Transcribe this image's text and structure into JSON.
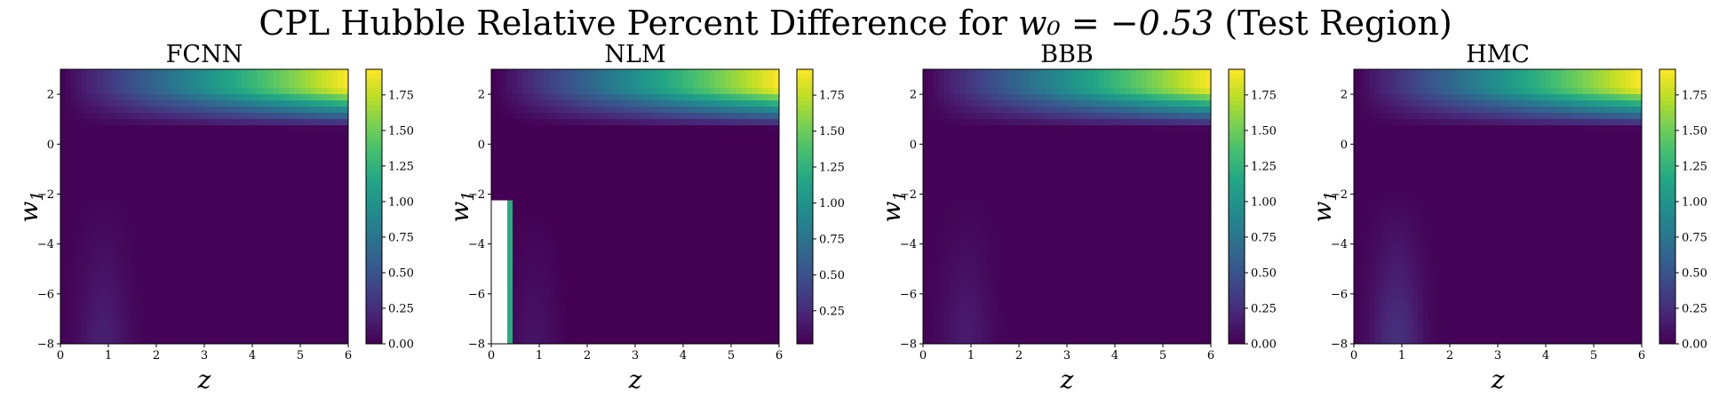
{
  "figure": {
    "title_prefix": "CPL Hubble Relative Percent Difference for ",
    "title_math": "w₀ = −0.53",
    "title_suffix": " (Test Region)"
  },
  "chart_data": [
    {
      "type": "heatmap",
      "title": "FCNN",
      "xlabel": "z",
      "ylabel": "w1",
      "xlim": [
        0,
        6
      ],
      "ylim": [
        -8,
        3
      ],
      "xticks": [
        "0",
        "1",
        "2",
        "3",
        "4",
        "5",
        "6"
      ],
      "yticks": [
        "2",
        "0",
        "−2",
        "−4",
        "−6",
        "−8"
      ],
      "colorbar": {
        "range": [
          0,
          1.93
        ],
        "ticks": [
          "0.00",
          "0.25",
          "0.50",
          "0.75",
          "1.00",
          "1.25",
          "1.50",
          "1.75"
        ]
      },
      "colormap": "viridis",
      "features": {
        "max_value_region": "high z, w1 > 1",
        "low_z_band_peak": 0.17,
        "white_missing_region": false
      }
    },
    {
      "type": "heatmap",
      "title": "NLM",
      "xlabel": "z",
      "ylabel": "w1",
      "xlim": [
        0,
        6
      ],
      "ylim": [
        -8,
        3
      ],
      "xticks": [
        "0",
        "1",
        "2",
        "3",
        "4",
        "5",
        "6"
      ],
      "yticks": [
        "2",
        "0",
        "−2",
        "−4",
        "−6",
        "−8"
      ],
      "colorbar": {
        "range": [
          0.02,
          1.93
        ],
        "ticks": [
          "0.25",
          "0.50",
          "0.75",
          "1.00",
          "1.25",
          "1.50",
          "1.75"
        ]
      },
      "colormap": "viridis",
      "features": {
        "max_value_region": "high z, w1 > 1",
        "low_z_band_peak": 0.12,
        "white_missing_region": true
      }
    },
    {
      "type": "heatmap",
      "title": "BBB",
      "xlabel": "z",
      "ylabel": "w1",
      "xlim": [
        0,
        6
      ],
      "ylim": [
        -8,
        3
      ],
      "xticks": [
        "0",
        "1",
        "2",
        "3",
        "4",
        "5",
        "6"
      ],
      "yticks": [
        "2",
        "0",
        "−2",
        "−4",
        "−6",
        "−8"
      ],
      "colorbar": {
        "range": [
          0,
          1.93
        ],
        "ticks": [
          "0.00",
          "0.25",
          "0.50",
          "0.75",
          "1.00",
          "1.25",
          "1.50",
          "1.75"
        ]
      },
      "colormap": "viridis",
      "features": {
        "max_value_region": "high z, w1 > 1",
        "low_z_band_peak": 0.15,
        "white_missing_region": false
      }
    },
    {
      "type": "heatmap",
      "title": "HMC",
      "xlabel": "z",
      "ylabel": "w1",
      "xlim": [
        0,
        6
      ],
      "ylim": [
        -8,
        3
      ],
      "xticks": [
        "0",
        "1",
        "2",
        "3",
        "4",
        "5",
        "6"
      ],
      "yticks": [
        "2",
        "0",
        "−2",
        "−4",
        "−6",
        "−8"
      ],
      "colorbar": {
        "range": [
          0,
          1.93
        ],
        "ticks": [
          "0.00",
          "0.25",
          "0.50",
          "0.75",
          "1.00",
          "1.25",
          "1.50",
          "1.75"
        ]
      },
      "colormap": "viridis",
      "features": {
        "max_value_region": "high z, w1 > 1",
        "low_z_band_peak": 0.27,
        "white_missing_region": false
      }
    }
  ]
}
